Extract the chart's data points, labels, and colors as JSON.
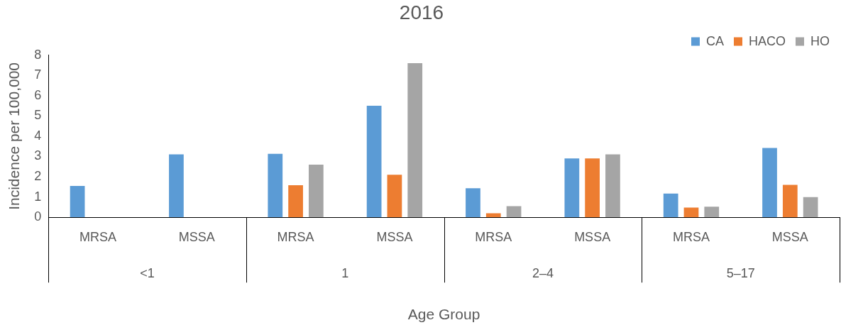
{
  "chart_data": {
    "type": "bar",
    "title": "2016",
    "xlabel": "Age Group",
    "ylabel": "Incidence per 100,000",
    "categories": [
      "MRSA",
      "MSSA",
      "MRSA",
      "MSSA",
      "MRSA",
      "MSSA",
      "MRSA",
      "MSSA"
    ],
    "annotations": [
      "<1",
      "1",
      "2–4",
      "5–17"
    ],
    "series": [
      {
        "name": "CA",
        "color": "#5b9bd5",
        "values": [
          1.55,
          3.1,
          3.13,
          5.5,
          1.43,
          2.9,
          1.17,
          3.42
        ]
      },
      {
        "name": "HACO",
        "color": "#ed7d31",
        "values": [
          0,
          0,
          1.58,
          2.1,
          0.2,
          2.9,
          0.48,
          1.6
        ]
      },
      {
        "name": "HO",
        "color": "#a5a5a5",
        "values": [
          0,
          0,
          2.6,
          7.6,
          0.55,
          3.1,
          0.52,
          1.0
        ]
      }
    ],
    "ylim": [
      0,
      8
    ],
    "yticks": [
      0,
      1,
      2,
      3,
      4,
      5,
      6,
      7,
      8
    ],
    "grid": false,
    "legend": "top right"
  }
}
